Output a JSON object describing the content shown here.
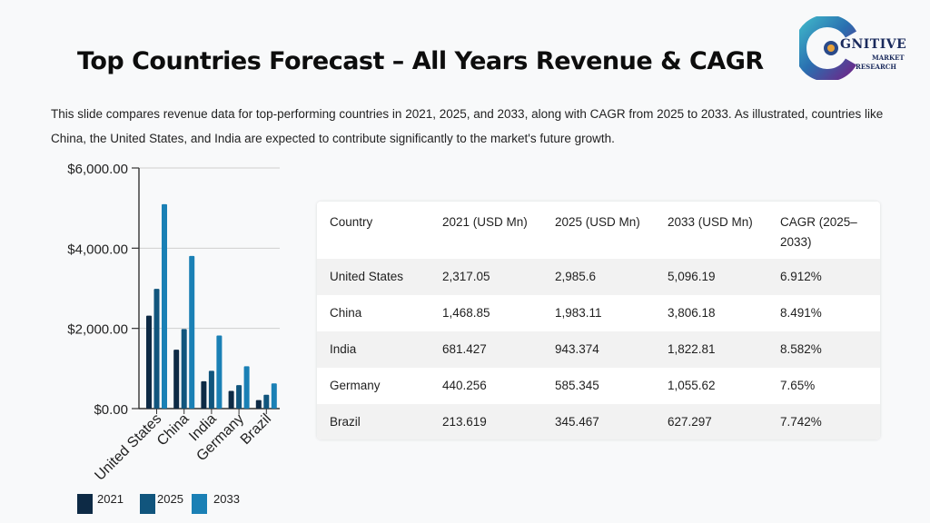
{
  "header": {
    "title": "Top Countries Forecast – All Years Revenue & CAGR",
    "intro": "This slide compares revenue data for top-performing countries in 2021, 2025, and 2033, along with CAGR from 2025 to 2033. As illustrated, countries like China, the United States, and India are expected to contribute significantly to the market's future growth."
  },
  "logo": {
    "word": "GNITIVE",
    "line1": "MARKET",
    "line2": "RESEARCH"
  },
  "chart_data": {
    "type": "bar",
    "categories": [
      "United States",
      "China",
      "India",
      "Germany",
      "Brazil"
    ],
    "series": [
      {
        "name": "2021",
        "color": "#0d2a45",
        "values": [
          2317.05,
          1468.85,
          681.427,
          440.256,
          213.619
        ]
      },
      {
        "name": "2025",
        "color": "#11557d",
        "values": [
          2985.6,
          1983.11,
          943.374,
          585.345,
          345.467
        ]
      },
      {
        "name": "2033",
        "color": "#1a80b5",
        "values": [
          5096.19,
          3806.18,
          1822.81,
          1055.62,
          627.297
        ]
      }
    ],
    "yticks": [
      0,
      2000,
      4000,
      6000
    ],
    "ytick_labels": [
      "$0.00",
      "$2,000.00",
      "$4,000.00",
      "$6,000.00"
    ],
    "ylim": [
      0,
      6000
    ],
    "grid": true,
    "legend": "bottom-left"
  },
  "table": {
    "headers": [
      "Country",
      "2021 (USD Mn)",
      "2025 (USD Mn)",
      "2033 (USD Mn)",
      "CAGR (2025–2033)"
    ],
    "rows": [
      [
        "United States",
        "2,317.05",
        "2,985.6",
        "5,096.19",
        "6.912%"
      ],
      [
        "China",
        "1,468.85",
        "1,983.11",
        "3,806.18",
        "8.491%"
      ],
      [
        "India",
        "681.427",
        "943.374",
        "1,822.81",
        "8.582%"
      ],
      [
        "Germany",
        "440.256",
        "585.345",
        "1,055.62",
        "7.65%"
      ],
      [
        "Brazil",
        "213.619",
        "345.467",
        "627.297",
        "7.742%"
      ]
    ]
  }
}
